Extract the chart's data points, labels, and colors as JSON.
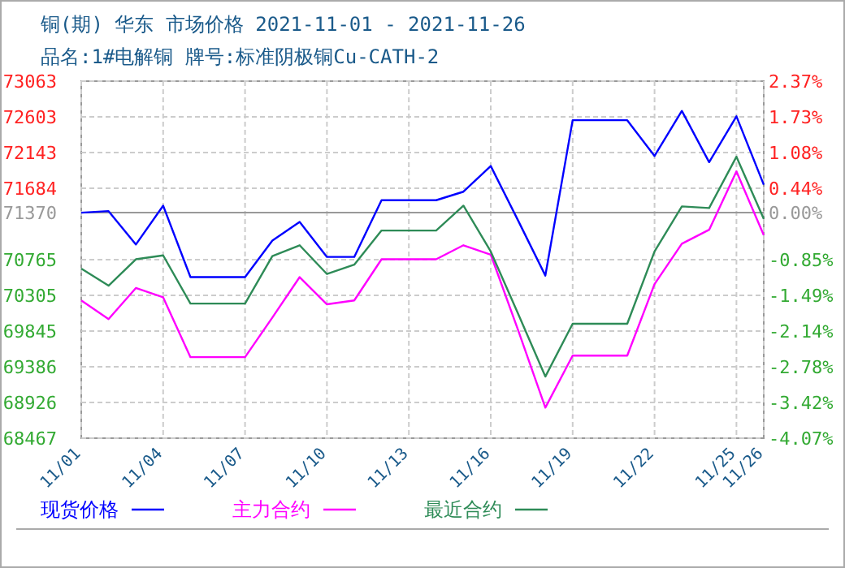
{
  "chart_data": {
    "type": "line",
    "title": "铜(期) 华东 市场价格 2021-11-01 - 2021-11-26",
    "subtitle": "品名:1#电解铜 牌号:标准阴极铜Cu-CATH-2",
    "x": [
      "2021-11-01",
      "2021-11-02",
      "2021-11-03",
      "2021-11-04",
      "2021-11-05",
      "2021-11-06",
      "2021-11-07",
      "2021-11-08",
      "2021-11-09",
      "2021-11-10",
      "2021-11-11",
      "2021-11-12",
      "2021-11-13",
      "2021-11-14",
      "2021-11-15",
      "2021-11-16",
      "2021-11-17",
      "2021-11-18",
      "2021-11-19",
      "2021-11-20",
      "2021-11-21",
      "2021-11-22",
      "2021-11-23",
      "2021-11-24",
      "2021-11-25",
      "2021-11-26"
    ],
    "series": [
      {
        "name": "现货价格",
        "color": "#0000ff",
        "values": [
          71370,
          71390,
          70960,
          71460,
          70540,
          70540,
          70540,
          71010,
          71250,
          70800,
          70800,
          71530,
          71530,
          71530,
          71640,
          71970,
          71270,
          70560,
          72560,
          72560,
          72560,
          72100,
          72680,
          72020,
          72610,
          71730
        ]
      },
      {
        "name": "主力合约",
        "color": "#ff00ff",
        "values": [
          70240,
          70000,
          70400,
          70280,
          69510,
          69510,
          69510,
          70020,
          70540,
          70190,
          70240,
          70770,
          70770,
          70770,
          70950,
          70830,
          69860,
          68860,
          69530,
          69530,
          69530,
          70450,
          70970,
          71150,
          71900,
          71080
        ]
      },
      {
        "name": "最近合约",
        "color": "#2e8b57",
        "values": [
          70650,
          70430,
          70770,
          70820,
          70200,
          70200,
          70200,
          70810,
          70950,
          70580,
          70700,
          71140,
          71140,
          71140,
          71460,
          70870,
          70070,
          69260,
          69940,
          69940,
          69940,
          70870,
          71450,
          71430,
          72090,
          71290
        ]
      }
    ],
    "ylim": [
      68467,
      73063
    ],
    "yticks": [
      68467,
      68926,
      69386,
      69845,
      70305,
      70765,
      71370,
      71684,
      72143,
      72603,
      73063
    ],
    "y2lim": [
      -4.07,
      2.37
    ],
    "y2ticks": [
      {
        "value": -4.07,
        "label": "-4.07%"
      },
      {
        "value": -3.42,
        "label": "-3.42%"
      },
      {
        "value": -2.78,
        "label": "-2.78%"
      },
      {
        "value": -2.14,
        "label": "-2.14%"
      },
      {
        "value": -1.49,
        "label": "-1.49%"
      },
      {
        "value": -0.85,
        "label": "-0.85%"
      },
      {
        "value": 0,
        "label": "0.00%"
      },
      {
        "value": 0.44,
        "label": "0.44%"
      },
      {
        "value": 1.08,
        "label": "1.08%"
      },
      {
        "value": 1.73,
        "label": "1.73%"
      },
      {
        "value": 2.37,
        "label": "2.37%"
      }
    ],
    "xlim": [
      "2021-11-01",
      "2021-11-26"
    ],
    "xticks": [
      {
        "value": "2021-11-01",
        "label": "11/01"
      },
      {
        "value": "2021-11-04",
        "label": "11/04"
      },
      {
        "value": "2021-11-07",
        "label": "11/07"
      },
      {
        "value": "2021-11-10",
        "label": "11/10"
      },
      {
        "value": "2021-11-13",
        "label": "11/13"
      },
      {
        "value": "2021-11-16",
        "label": "11/16"
      },
      {
        "value": "2021-11-19",
        "label": "11/19"
      },
      {
        "value": "2021-11-22",
        "label": "11/22"
      },
      {
        "value": "2021-11-25",
        "label": "11/25"
      },
      {
        "value": "2021-11-26",
        "label": "11/26"
      }
    ],
    "ref_lines": [
      {
        "axis": "y",
        "value": 71370,
        "color": "#999999"
      }
    ],
    "grid": true,
    "legend": "bottom",
    "marker": "none",
    "line_style": "solid"
  }
}
